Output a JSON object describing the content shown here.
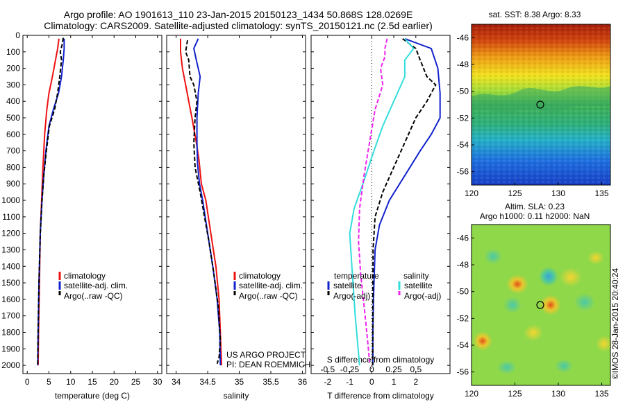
{
  "title_line1": "Argo profile: AO 1901613_110 23-Jan-2015 20150123_1434 50.868S 128.0269E",
  "title_line2": "Climatology: CARS2009. Satellite-adjusted climatology: synTS_20150121.nc (2.5d earlier)",
  "credit": "US ARGO PROJECT",
  "pi": "PI: DEAN ROEMMICH",
  "stamp": "©IMOS 28-Jan-2015 20:40:24",
  "sst_title": "sat. SST: 8.38 Argo: 8.33",
  "sla_title1": "Altim. SLA: 0.23",
  "sla_title2": "Argo h1000: 0.11 h2000: NaN",
  "legend_profiles": [
    "climatology",
    "satellite-adj. clim.",
    "Argo(..raw -QC)"
  ],
  "legend_diff": {
    "temp_head": "temperature",
    "sal_head": "salinity",
    "t_sat": "satellite",
    "t_argo": "Argo(-adj)",
    "s_sat": "satellite",
    "s_argo": "Argo(-adj)"
  },
  "colors": {
    "climatology": "#ee1111",
    "satellite": "#1122cc",
    "argo": "#000000",
    "s_sat": "#33dddd",
    "s_argo": "#ee22ee"
  },
  "chart_data": [
    {
      "type": "line",
      "id": "temperature",
      "xlabel": "temperature (deg C)",
      "ylim": [
        2050,
        0
      ],
      "xlim": [
        -1,
        31
      ],
      "xticks": [
        0,
        5,
        10,
        15,
        20,
        25,
        30
      ],
      "yticks": [
        0,
        100,
        200,
        300,
        400,
        500,
        600,
        700,
        800,
        900,
        1000,
        1100,
        1200,
        1300,
        1400,
        1500,
        1600,
        1700,
        1800,
        1900,
        2000
      ],
      "series": [
        {
          "name": "climatology",
          "color": "#ee1111",
          "dash": "",
          "points": [
            [
              7.3,
              20
            ],
            [
              7.0,
              80
            ],
            [
              6.5,
              150
            ],
            [
              5.8,
              250
            ],
            [
              5.0,
              350
            ],
            [
              4.5,
              450
            ],
            [
              4.0,
              600
            ],
            [
              3.6,
              800
            ],
            [
              3.3,
              1000
            ],
            [
              3.0,
              1200
            ],
            [
              2.8,
              1500
            ],
            [
              2.6,
              1800
            ],
            [
              2.5,
              2000
            ]
          ]
        },
        {
          "name": "satellite-adj. clim.",
          "color": "#1122cc",
          "dash": "",
          "points": [
            [
              8.5,
              20
            ],
            [
              8.5,
              80
            ],
            [
              8.3,
              150
            ],
            [
              7.9,
              250
            ],
            [
              7.2,
              350
            ],
            [
              6.0,
              450
            ],
            [
              5.0,
              550
            ],
            [
              4.3,
              700
            ],
            [
              3.8,
              850
            ],
            [
              3.4,
              1000
            ],
            [
              3.0,
              1200
            ],
            [
              2.7,
              1500
            ],
            [
              2.5,
              1800
            ],
            [
              2.4,
              2000
            ]
          ]
        },
        {
          "name": "Argo(..raw -QC)",
          "color": "#000000",
          "dash": "6,3",
          "points": [
            [
              8.3,
              15
            ],
            [
              8.0,
              60
            ],
            [
              7.6,
              100
            ],
            [
              7.9,
              150
            ],
            [
              7.5,
              250
            ],
            [
              7.0,
              350
            ],
            [
              6.3,
              450
            ],
            [
              5.1,
              550
            ],
            [
              4.4,
              700
            ],
            [
              3.8,
              850
            ],
            [
              3.4,
              1000
            ],
            [
              3.0,
              1200
            ],
            [
              2.7,
              1500
            ],
            [
              2.5,
              1800
            ],
            [
              2.4,
              2000
            ]
          ]
        }
      ]
    },
    {
      "type": "line",
      "id": "salinity",
      "xlabel": "salinity",
      "ylim": [
        2050,
        0
      ],
      "xlim": [
        33.85,
        36.05
      ],
      "xticks": [
        34,
        34.5,
        35,
        35.5,
        36
      ],
      "xticklabels": [
        "34",
        "34.5",
        "35",
        "35.5",
        "36"
      ],
      "series": [
        {
          "name": "climatology",
          "color": "#ee1111",
          "dash": "",
          "points": [
            [
              34.07,
              20
            ],
            [
              34.07,
              100
            ],
            [
              34.1,
              200
            ],
            [
              34.15,
              300
            ],
            [
              34.2,
              400
            ],
            [
              34.25,
              500
            ],
            [
              34.32,
              650
            ],
            [
              34.36,
              750
            ],
            [
              34.4,
              900
            ],
            [
              34.47,
              1000
            ],
            [
              34.55,
              1200
            ],
            [
              34.63,
              1400
            ],
            [
              34.68,
              1600
            ],
            [
              34.7,
              1800
            ],
            [
              34.72,
              2000
            ]
          ]
        },
        {
          "name": "satellite-adj. clim.",
          "color": "#1122cc",
          "dash": "",
          "points": [
            [
              34.35,
              20
            ],
            [
              34.28,
              80
            ],
            [
              34.32,
              150
            ],
            [
              34.38,
              250
            ],
            [
              34.35,
              350
            ],
            [
              34.33,
              500
            ],
            [
              34.33,
              650
            ],
            [
              34.34,
              780
            ],
            [
              34.37,
              900
            ],
            [
              34.42,
              1000
            ],
            [
              34.5,
              1200
            ],
            [
              34.58,
              1400
            ],
            [
              34.65,
              1600
            ],
            [
              34.69,
              1800
            ],
            [
              34.7,
              2000
            ]
          ]
        },
        {
          "name": "Argo(..raw -QC)",
          "color": "#000000",
          "dash": "6,3",
          "points": [
            [
              34.18,
              30
            ],
            [
              34.15,
              100
            ],
            [
              34.2,
              150
            ],
            [
              34.22,
              250
            ],
            [
              34.28,
              300
            ],
            [
              34.33,
              400
            ],
            [
              34.3,
              500
            ],
            [
              34.28,
              650
            ],
            [
              34.3,
              800
            ],
            [
              34.38,
              950
            ],
            [
              34.45,
              1100
            ],
            [
              34.52,
              1250
            ],
            [
              34.6,
              1450
            ],
            [
              34.67,
              1650
            ],
            [
              34.7,
              1850
            ],
            [
              34.68,
              1950
            ],
            [
              34.65,
              1990
            ]
          ]
        }
      ]
    },
    {
      "type": "line",
      "id": "difference",
      "xlabel": "T difference from climatology",
      "xlabel_top": "S difference from climatology",
      "ylim": [
        2050,
        0
      ],
      "xlim": [
        -2.75,
        3.55
      ],
      "xticks": [
        -2,
        -1,
        0,
        1,
        2
      ],
      "xticklabels": [
        "-2",
        "-1",
        "0",
        "1",
        "2"
      ],
      "sxticks": [
        -0.5,
        -0.25,
        0,
        0.25,
        0.5
      ],
      "sxticklabels": [
        "-0.5",
        "-0.25",
        "0",
        "0.25",
        "0.5"
      ],
      "series": [
        {
          "name": "temperature satellite",
          "color": "#1122cc",
          "dash": "",
          "points": [
            [
              1.5,
              20
            ],
            [
              2.7,
              80
            ],
            [
              3.0,
              200
            ],
            [
              3.1,
              350
            ],
            [
              3.1,
              500
            ],
            [
              2.7,
              600
            ],
            [
              2.2,
              700
            ],
            [
              1.5,
              850
            ],
            [
              0.8,
              1000
            ],
            [
              0.35,
              1150
            ],
            [
              0.15,
              1300
            ],
            [
              0.08,
              1600
            ],
            [
              0.05,
              1800
            ],
            [
              0.05,
              2000
            ]
          ]
        },
        {
          "name": "temperature Argo(-adj)",
          "color": "#000000",
          "dash": "6,3",
          "points": [
            [
              1.4,
              20
            ],
            [
              2.0,
              80
            ],
            [
              2.2,
              150
            ],
            [
              2.5,
              250
            ],
            [
              2.9,
              300
            ],
            [
              2.5,
              400
            ],
            [
              2.0,
              500
            ],
            [
              1.5,
              650
            ],
            [
              1.0,
              800
            ],
            [
              0.5,
              950
            ],
            [
              0.15,
              1100
            ],
            [
              0.06,
              1300
            ],
            [
              0.05,
              1600
            ],
            [
              0.05,
              1800
            ],
            [
              0.04,
              2000
            ]
          ]
        },
        {
          "name": "salinity satellite",
          "color": "#33dddd",
          "dash": "",
          "points": [
            [
              1.5,
              20
            ],
            [
              1.9,
              80
            ],
            [
              1.5,
              150
            ],
            [
              1.5,
              250
            ],
            [
              1.0,
              400
            ],
            [
              0.5,
              550
            ],
            [
              0.1,
              700
            ],
            [
              -0.4,
              900
            ],
            [
              -0.8,
              1050
            ],
            [
              -1.0,
              1200
            ],
            [
              -0.9,
              1400
            ],
            [
              -0.75,
              1700
            ],
            [
              -0.55,
              2000
            ]
          ]
        },
        {
          "name": "salinity Argo(-adj)",
          "color": "#ee22ee",
          "dash": "6,3",
          "points": [
            [
              0.7,
              20
            ],
            [
              0.6,
              80
            ],
            [
              0.6,
              130
            ],
            [
              0.4,
              200
            ],
            [
              0.5,
              300
            ],
            [
              0.15,
              450
            ],
            [
              -0.1,
              650
            ],
            [
              -0.35,
              850
            ],
            [
              -0.55,
              1050
            ],
            [
              -0.6,
              1250
            ],
            [
              -0.5,
              1450
            ],
            [
              -0.3,
              1700
            ],
            [
              -0.15,
              1900
            ],
            [
              -0.1,
              1980
            ]
          ]
        }
      ]
    },
    {
      "type": "heatmap",
      "id": "sst_map",
      "title": "sat. SST: 8.38 Argo: 8.33",
      "xlim": [
        120,
        136
      ],
      "ylim": [
        -57,
        -45
      ],
      "xticks": [
        120,
        125,
        130,
        135
      ],
      "yticks": [
        -46,
        -48,
        -50,
        -52,
        -54,
        -56
      ],
      "marker": [
        128.03,
        -50.87
      ]
    },
    {
      "type": "heatmap",
      "id": "sla_map",
      "title": "Altim. SLA: 0.23",
      "xlim": [
        120,
        136
      ],
      "ylim": [
        -57,
        -45
      ],
      "xticks": [
        120,
        125,
        130,
        135
      ],
      "yticks": [
        -46,
        -48,
        -50,
        -52,
        -54,
        -56
      ],
      "marker": [
        128.03,
        -50.87
      ]
    }
  ]
}
